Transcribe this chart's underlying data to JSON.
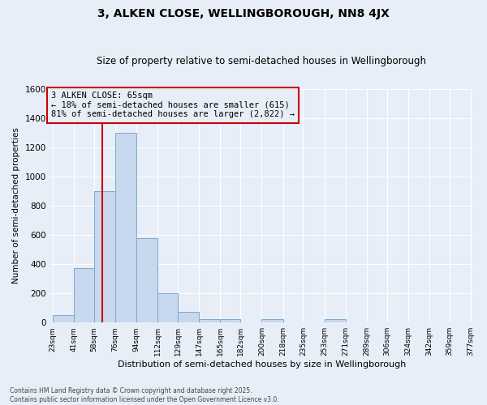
{
  "title": "3, ALKEN CLOSE, WELLINGBOROUGH, NN8 4JX",
  "subtitle": "Size of property relative to semi-detached houses in Wellingborough",
  "xlabel": "Distribution of semi-detached houses by size in Wellingborough",
  "ylabel": "Number of semi-detached properties",
  "bin_edges": [
    23,
    41,
    58,
    76,
    94,
    112,
    129,
    147,
    165,
    182,
    200,
    218,
    235,
    253,
    271,
    289,
    306,
    324,
    342,
    359,
    377
  ],
  "bar_heights": [
    50,
    375,
    900,
    1300,
    580,
    200,
    75,
    25,
    25,
    0,
    25,
    0,
    0,
    25,
    0,
    0,
    0,
    0,
    0,
    0
  ],
  "bar_color": "#c8d8ee",
  "bar_edge_color": "#7aaace",
  "property_size": 65,
  "property_label": "3 ALKEN CLOSE: 65sqm",
  "pct_smaller": 18,
  "count_smaller": 615,
  "pct_larger": 81,
  "count_larger": "2,822",
  "vline_color": "#cc0000",
  "ylim": [
    0,
    1600
  ],
  "yticks": [
    0,
    200,
    400,
    600,
    800,
    1000,
    1200,
    1400,
    1600
  ],
  "footer1": "Contains HM Land Registry data © Crown copyright and database right 2025.",
  "footer2": "Contains public sector information licensed under the Open Government Licence v3.0.",
  "bg_color": "#e8eef8",
  "grid_color": "#ffffff"
}
